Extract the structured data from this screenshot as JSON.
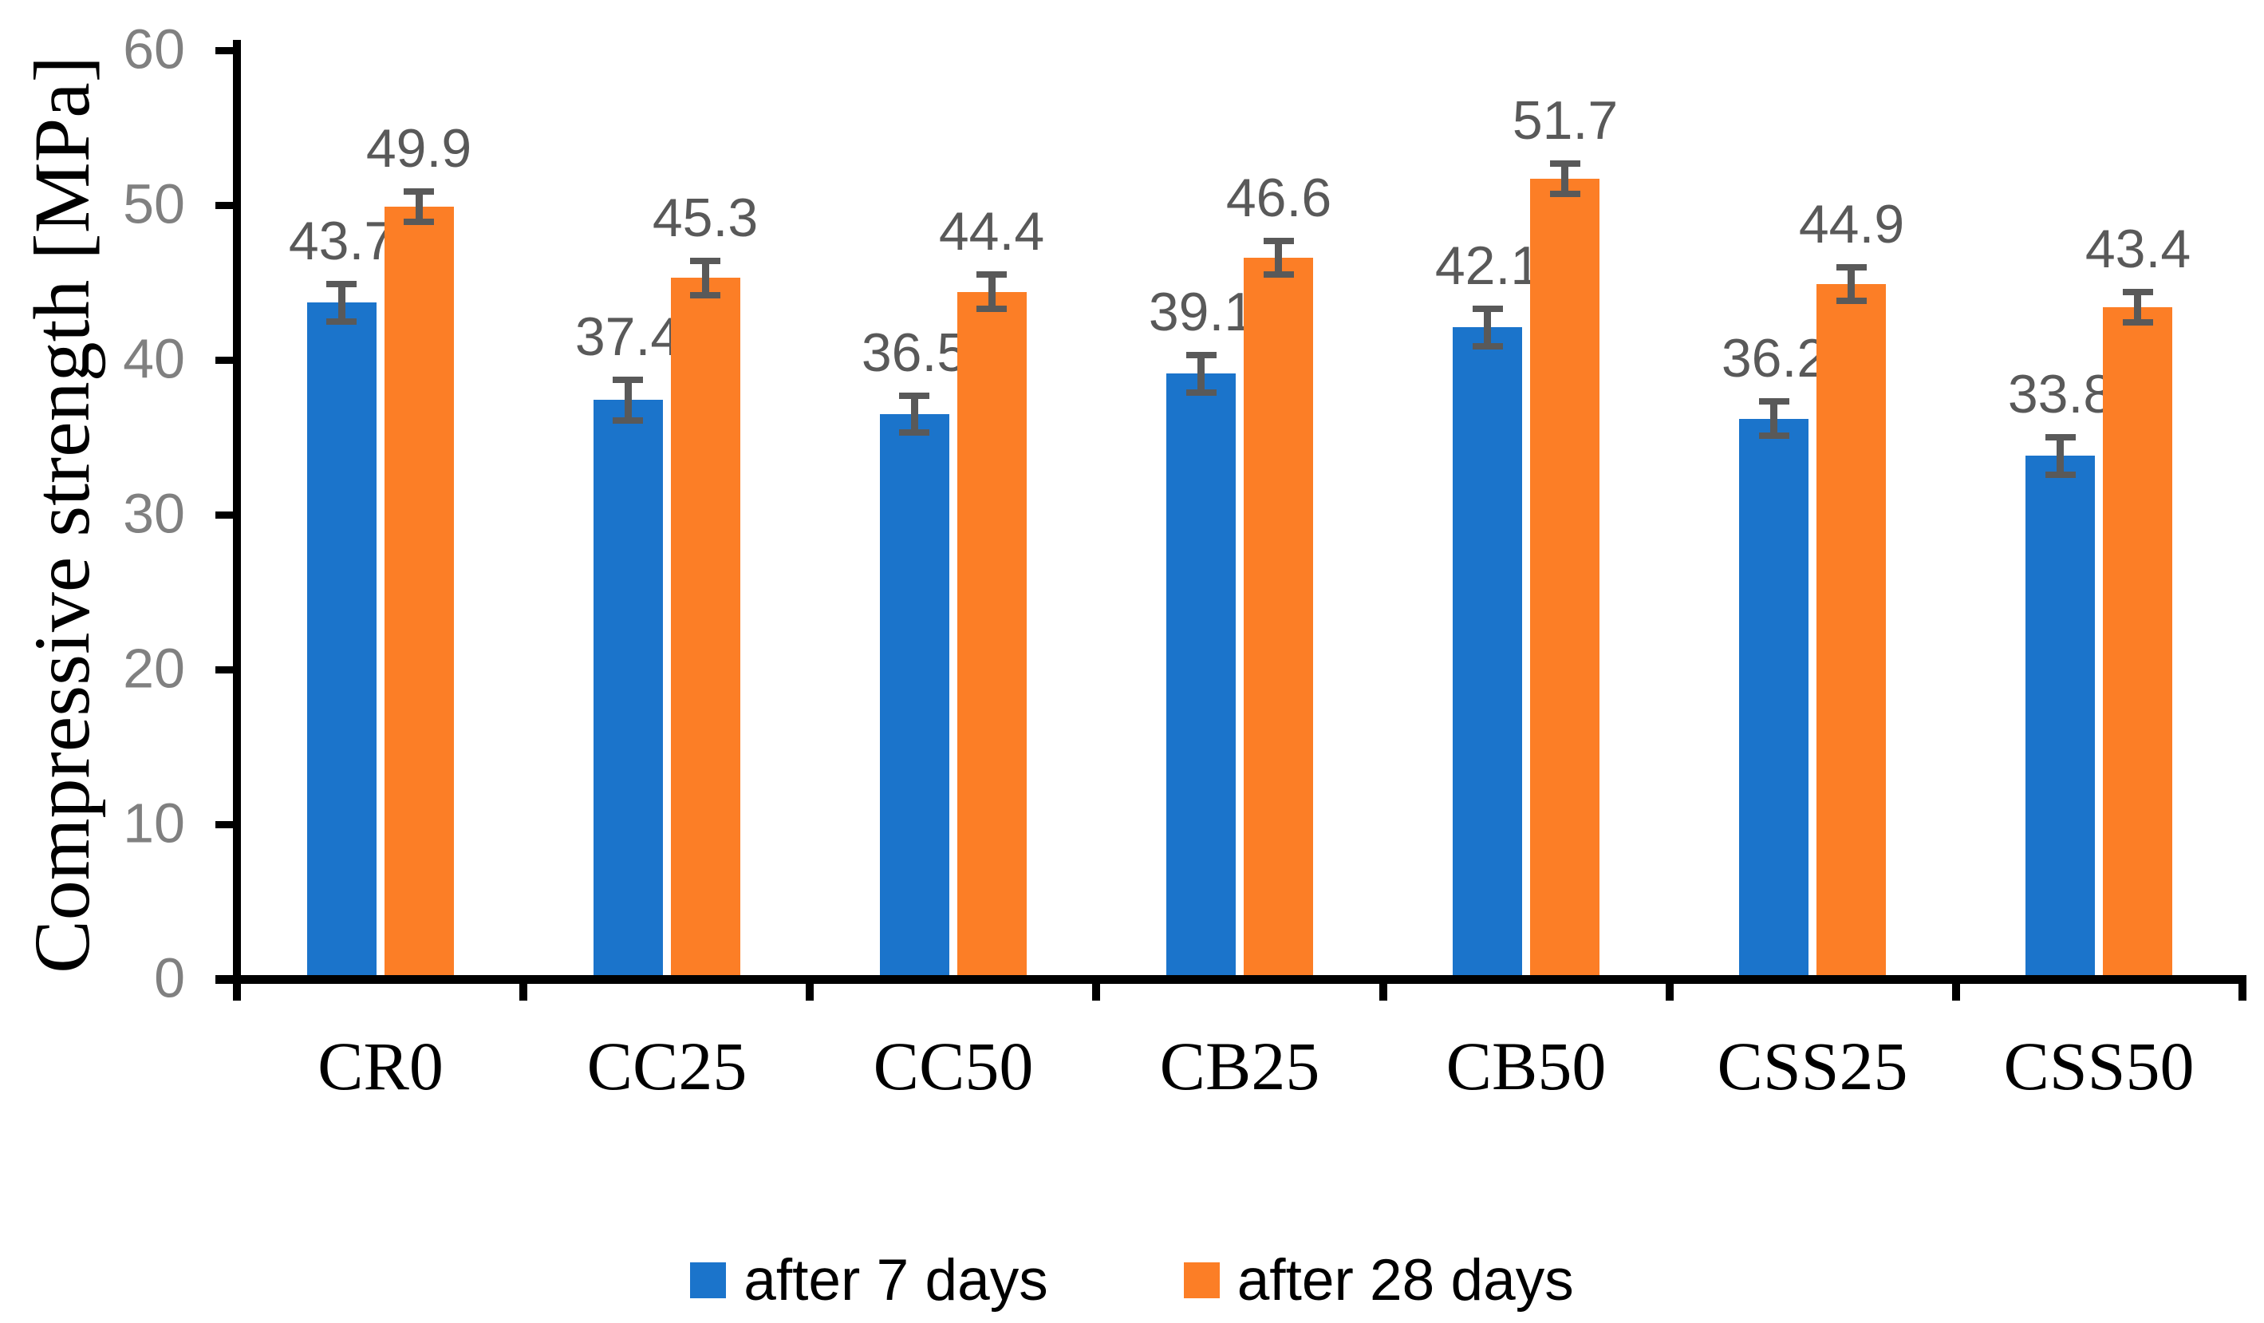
{
  "page": {
    "background": "#FFFFFF"
  },
  "chart_data": {
    "type": "bar",
    "title": "",
    "categories": [
      "CR0",
      "CC25",
      "CC50",
      "CB25",
      "CB50",
      "CSS25",
      "CSS50"
    ],
    "series": [
      {
        "name": "after 7 days",
        "color": "#1B74CB",
        "values": [
          43.7,
          37.4,
          36.5,
          39.1,
          42.1,
          36.2,
          33.8
        ],
        "errors": [
          1.2,
          1.3,
          1.2,
          1.2,
          1.2,
          1.1,
          1.2
        ]
      },
      {
        "name": "after 28 days",
        "color": "#FC7E26",
        "values": [
          49.9,
          45.3,
          44.4,
          46.6,
          51.7,
          44.9,
          43.4
        ],
        "errors": [
          1.0,
          1.1,
          1.1,
          1.1,
          1.0,
          1.1,
          1.0
        ]
      }
    ],
    "xlabel": "",
    "ylabel": "Compressive strength [MPa]",
    "ylim": [
      0,
      60
    ],
    "yticks": [
      0,
      10,
      20,
      30,
      40,
      50,
      60
    ],
    "grid": false,
    "legend_position": "bottom",
    "data_labels": true,
    "error_bars": true
  },
  "colors": {
    "axis": "#000000",
    "tick_label": "#808080",
    "data_label": "#595959",
    "error_bar": "#595959",
    "category_label": "#000000",
    "legend_text": "#000000"
  }
}
